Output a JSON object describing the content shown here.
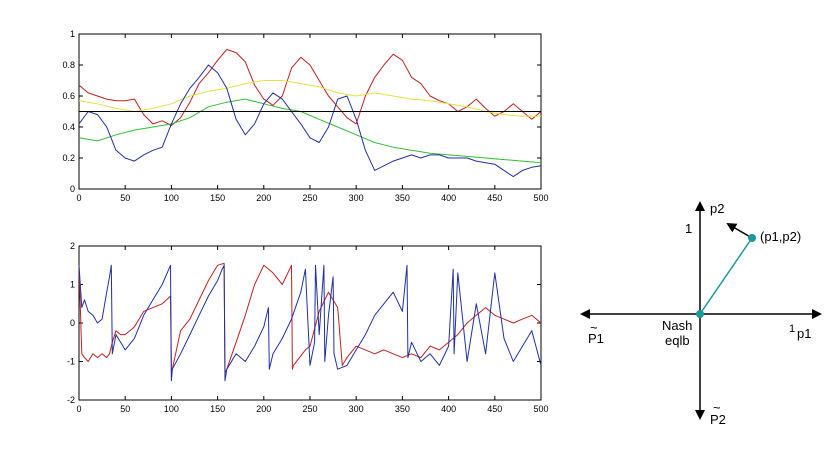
{
  "chart_data": [
    {
      "type": "line",
      "xlim": [
        0,
        500
      ],
      "ylim": [
        0,
        1
      ],
      "xticks": [
        0,
        50,
        100,
        150,
        200,
        250,
        300,
        350,
        400,
        450,
        500
      ],
      "yticks": [
        0,
        0.2,
        0.4,
        0.6,
        0.8,
        1
      ],
      "xtick_labels": [
        "0",
        "50",
        "100",
        "150",
        "200",
        "250",
        "300",
        "350",
        "400",
        "450",
        "500"
      ],
      "ytick_labels": [
        "0",
        "0.2",
        "0.4",
        "0.6",
        "0.8",
        "1"
      ],
      "grid": false,
      "hline": 0.5,
      "series": [
        {
          "color": "#c02020",
          "x": [
            0,
            10,
            20,
            30,
            40,
            50,
            60,
            70,
            80,
            90,
            100,
            110,
            120,
            130,
            140,
            150,
            160,
            170,
            180,
            190,
            200,
            210,
            220,
            230,
            240,
            250,
            260,
            270,
            280,
            290,
            300,
            310,
            320,
            330,
            340,
            350,
            360,
            370,
            380,
            390,
            400,
            410,
            420,
            430,
            440,
            450,
            460,
            470,
            480,
            490,
            500
          ],
          "y": [
            0.67,
            0.62,
            0.6,
            0.58,
            0.57,
            0.57,
            0.58,
            0.48,
            0.42,
            0.44,
            0.41,
            0.46,
            0.56,
            0.68,
            0.75,
            0.83,
            0.9,
            0.88,
            0.82,
            0.67,
            0.58,
            0.54,
            0.6,
            0.78,
            0.85,
            0.8,
            0.7,
            0.6,
            0.53,
            0.46,
            0.42,
            0.6,
            0.72,
            0.8,
            0.87,
            0.83,
            0.72,
            0.68,
            0.6,
            0.57,
            0.55,
            0.5,
            0.53,
            0.58,
            0.52,
            0.47,
            0.5,
            0.55,
            0.5,
            0.45,
            0.5
          ]
        },
        {
          "color": "#e8e040",
          "x": [
            0,
            20,
            40,
            60,
            80,
            100,
            120,
            140,
            160,
            180,
            200,
            220,
            240,
            260,
            280,
            300,
            320,
            340,
            360,
            380,
            400,
            420,
            440,
            460,
            480,
            500
          ],
          "y": [
            0.57,
            0.55,
            0.52,
            0.5,
            0.52,
            0.55,
            0.6,
            0.63,
            0.65,
            0.68,
            0.7,
            0.7,
            0.68,
            0.66,
            0.62,
            0.6,
            0.62,
            0.6,
            0.58,
            0.57,
            0.55,
            0.53,
            0.5,
            0.48,
            0.47,
            0.47
          ]
        },
        {
          "color": "#30c030",
          "x": [
            0,
            20,
            40,
            60,
            80,
            100,
            120,
            140,
            160,
            180,
            200,
            220,
            240,
            260,
            280,
            300,
            320,
            340,
            360,
            380,
            400,
            420,
            440,
            460,
            480,
            500
          ],
          "y": [
            0.33,
            0.31,
            0.35,
            0.38,
            0.4,
            0.42,
            0.46,
            0.53,
            0.56,
            0.58,
            0.55,
            0.52,
            0.5,
            0.45,
            0.4,
            0.35,
            0.3,
            0.27,
            0.25,
            0.23,
            0.22,
            0.21,
            0.2,
            0.19,
            0.18,
            0.17
          ]
        },
        {
          "color": "#2030a0",
          "x": [
            0,
            10,
            20,
            30,
            40,
            50,
            60,
            70,
            80,
            90,
            100,
            110,
            120,
            130,
            140,
            150,
            160,
            170,
            180,
            190,
            200,
            210,
            220,
            230,
            240,
            250,
            260,
            270,
            280,
            290,
            300,
            310,
            320,
            330,
            340,
            350,
            360,
            370,
            380,
            390,
            400,
            410,
            420,
            430,
            440,
            450,
            460,
            470,
            480,
            490,
            500
          ],
          "y": [
            0.42,
            0.5,
            0.48,
            0.4,
            0.25,
            0.2,
            0.18,
            0.22,
            0.25,
            0.27,
            0.42,
            0.55,
            0.65,
            0.72,
            0.8,
            0.75,
            0.65,
            0.45,
            0.35,
            0.42,
            0.55,
            0.62,
            0.58,
            0.5,
            0.42,
            0.33,
            0.3,
            0.4,
            0.58,
            0.6,
            0.45,
            0.25,
            0.12,
            0.15,
            0.18,
            0.2,
            0.22,
            0.2,
            0.22,
            0.22,
            0.2,
            0.2,
            0.2,
            0.18,
            0.17,
            0.16,
            0.12,
            0.08,
            0.12,
            0.14,
            0.15
          ]
        },
        {
          "color": "#000000",
          "x": [
            0,
            500
          ],
          "y": [
            0.5,
            0.5
          ]
        }
      ]
    },
    {
      "type": "line",
      "xlim": [
        0,
        500
      ],
      "ylim": [
        -2,
        2
      ],
      "xticks": [
        0,
        50,
        100,
        150,
        200,
        250,
        300,
        350,
        400,
        450,
        500
      ],
      "yticks": [
        -2,
        -1,
        0,
        1,
        2
      ],
      "xtick_labels": [
        "0",
        "50",
        "100",
        "150",
        "200",
        "250",
        "300",
        "350",
        "400",
        "450",
        "500"
      ],
      "ytick_labels": [
        "-2",
        "-1",
        "0",
        "1",
        "2"
      ],
      "grid": false,
      "series": [
        {
          "color": "#c02020",
          "x": [
            0,
            3,
            6,
            10,
            15,
            20,
            25,
            30,
            33,
            36,
            40,
            45,
            50,
            60,
            70,
            80,
            90,
            99,
            100,
            101,
            110,
            120,
            130,
            140,
            150,
            157,
            158,
            160,
            170,
            180,
            190,
            200,
            210,
            220,
            230,
            231,
            232,
            245,
            250,
            260,
            270,
            280,
            285,
            290,
            300,
            310,
            320,
            330,
            340,
            350,
            360,
            370,
            380,
            390,
            400,
            410,
            420,
            430,
            440,
            450,
            460,
            470,
            480,
            490,
            500
          ],
          "y": [
            1.5,
            -0.8,
            -0.9,
            -1.0,
            -0.8,
            -0.9,
            -0.8,
            -0.9,
            -0.8,
            -0.5,
            -0.2,
            -0.3,
            -0.3,
            -0.1,
            0.3,
            0.4,
            0.5,
            0.7,
            -1.4,
            -1.2,
            -0.2,
            0.1,
            0.6,
            1.1,
            1.5,
            1.55,
            -1.3,
            -1.2,
            -0.5,
            0.2,
            1.0,
            1.5,
            1.3,
            1.0,
            1.5,
            -1.2,
            -1.1,
            -0.7,
            -0.6,
            0.3,
            0.8,
            0.4,
            -1.1,
            -0.9,
            -0.6,
            -0.7,
            -0.8,
            -0.7,
            -0.8,
            -0.9,
            -0.8,
            -0.9,
            -0.6,
            -0.7,
            -0.5,
            -0.3,
            0.0,
            0.2,
            0.4,
            0.2,
            0.1,
            0.0,
            0.1,
            0.2,
            0.0
          ]
        },
        {
          "color": "#2030a0",
          "x": [
            0,
            3,
            6,
            10,
            15,
            20,
            25,
            30,
            33,
            35,
            36,
            40,
            45,
            50,
            60,
            70,
            80,
            90,
            99,
            100,
            101,
            110,
            120,
            130,
            140,
            150,
            155,
            157,
            158,
            160,
            170,
            180,
            190,
            200,
            205,
            206,
            210,
            220,
            230,
            240,
            245,
            250,
            255,
            256,
            260,
            265,
            266,
            270,
            275,
            276,
            280,
            290,
            300,
            310,
            320,
            330,
            340,
            350,
            355,
            356,
            360,
            370,
            380,
            390,
            400,
            405,
            406,
            410,
            420,
            430,
            440,
            450,
            460,
            470,
            480,
            490,
            500
          ],
          "y": [
            1.5,
            0.4,
            0.6,
            0.3,
            0.2,
            0.0,
            0.1,
            0.8,
            1.2,
            1.5,
            -0.8,
            -0.3,
            -0.5,
            -0.7,
            -0.4,
            0.2,
            0.6,
            1.0,
            1.5,
            -1.5,
            -1.2,
            -0.8,
            -0.3,
            0.2,
            0.7,
            1.1,
            1.4,
            1.5,
            -1.5,
            -1.2,
            -0.8,
            -1.0,
            -0.6,
            -0.1,
            0.4,
            -1.2,
            -0.8,
            -0.4,
            0.1,
            0.8,
            1.4,
            -1.1,
            -0.5,
            1.5,
            -0.3,
            1.5,
            -1.0,
            0.2,
            1.2,
            -0.8,
            -1.2,
            -1.1,
            -0.7,
            -0.3,
            0.2,
            0.5,
            0.8,
            0.3,
            1.5,
            -0.9,
            -0.5,
            -1.0,
            -0.8,
            -1.1,
            -0.6,
            1.4,
            -0.8,
            1.3,
            -1.0,
            0.5,
            -0.8,
            1.3,
            -0.4,
            -1.0,
            -0.6,
            -0.2,
            -1.1
          ]
        }
      ]
    }
  ],
  "diagram": {
    "axis_p2": "p2",
    "axis_p1": "p1",
    "tick_1_vertical": "1",
    "tick_1_horizontal": "1",
    "label_point": "(p1,p2)",
    "label_nash_line1": "Nash",
    "label_nash_line2": "eqlb",
    "label_p1_tilde": "P1",
    "label_p2_tilde": "P2",
    "tilde_mark": "~",
    "accent_color": "#1a9a9a"
  }
}
